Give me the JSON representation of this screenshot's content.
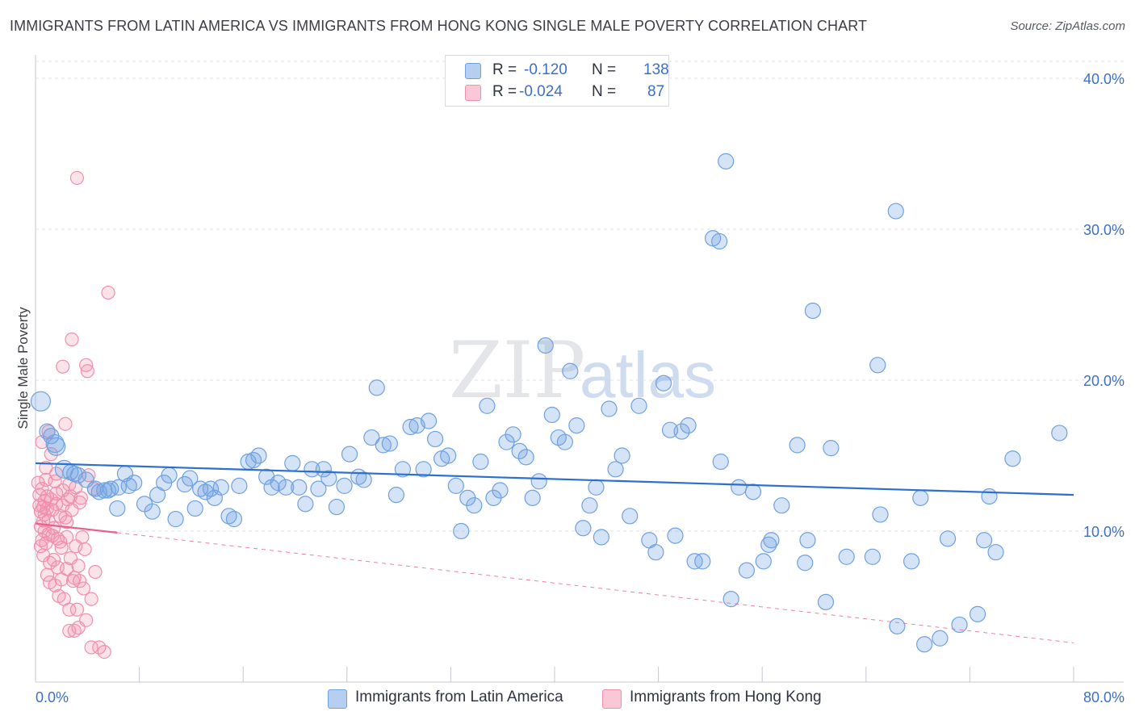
{
  "title": "IMMIGRANTS FROM LATIN AMERICA VS IMMIGRANTS FROM HONG KONG SINGLE MALE POVERTY CORRELATION CHART",
  "source": "Source: ZipAtlas.com",
  "watermark": {
    "zip": "ZIP",
    "atlas": "atlas"
  },
  "legend": {
    "rows": [
      {
        "r_label": "R =",
        "r_value": "-0.120",
        "n_label": "N =",
        "n_value": "138"
      },
      {
        "r_label": "R =",
        "r_value": "-0.024",
        "n_label": "N =",
        "n_value": "87"
      }
    ]
  },
  "chart_data": {
    "type": "scatter",
    "title": "IMMIGRANTS FROM LATIN AMERICA VS IMMIGRANTS FROM HONG KONG SINGLE MALE POVERTY CORRELATION CHART",
    "xlabel": "",
    "ylabel": "Single Male Poverty",
    "xlim": [
      0,
      80
    ],
    "ylim": [
      0,
      40
    ],
    "x_tick_labels": [
      "0.0%",
      "80.0%"
    ],
    "y_ticks": [
      10,
      20,
      30,
      40
    ],
    "y_tick_labels": [
      "10.0%",
      "20.0%",
      "30.0%",
      "40.0%"
    ],
    "grid": true,
    "legend_position": "top-center",
    "colors": {
      "latin_america": "#6fa1e0",
      "hong_kong": "#f08fac",
      "latin_line": "#2c6fce",
      "hk_line": "#e8628e"
    },
    "series": [
      {
        "name": "Immigrants from Latin America",
        "r": -0.12,
        "n": 138,
        "trend": {
          "x0": 0,
          "y0": 14.5,
          "x1": 80,
          "y1": 12.4
        },
        "points": [
          [
            0.4,
            18.6
          ],
          [
            0.9,
            16.6
          ],
          [
            1.2,
            16.3
          ],
          [
            1.5,
            15.8
          ],
          [
            1.6,
            15.6
          ],
          [
            2.2,
            14.1
          ],
          [
            2.7,
            13.9
          ],
          [
            3.0,
            13.8
          ],
          [
            3.3,
            13.7
          ],
          [
            3.9,
            13.4
          ],
          [
            4.6,
            12.8
          ],
          [
            4.9,
            12.6
          ],
          [
            5.3,
            12.7
          ],
          [
            5.6,
            12.7
          ],
          [
            5.8,
            12.8
          ],
          [
            6.4,
            12.9
          ],
          [
            6.3,
            11.5
          ],
          [
            6.9,
            13.8
          ],
          [
            7.2,
            13.0
          ],
          [
            7.6,
            13.2
          ],
          [
            8.4,
            11.8
          ],
          [
            9.0,
            11.3
          ],
          [
            9.4,
            12.4
          ],
          [
            9.9,
            13.2
          ],
          [
            10.3,
            13.7
          ],
          [
            10.8,
            10.8
          ],
          [
            11.5,
            13.1
          ],
          [
            11.9,
            13.5
          ],
          [
            12.3,
            11.5
          ],
          [
            12.7,
            12.8
          ],
          [
            13.1,
            12.6
          ],
          [
            13.5,
            12.8
          ],
          [
            13.8,
            12.2
          ],
          [
            14.3,
            12.9
          ],
          [
            14.9,
            11.0
          ],
          [
            15.3,
            10.8
          ],
          [
            15.7,
            13.0
          ],
          [
            16.4,
            14.6
          ],
          [
            16.8,
            14.7
          ],
          [
            17.2,
            15.0
          ],
          [
            17.8,
            13.6
          ],
          [
            18.2,
            12.9
          ],
          [
            18.7,
            13.2
          ],
          [
            19.3,
            12.9
          ],
          [
            19.8,
            14.5
          ],
          [
            20.3,
            12.9
          ],
          [
            20.8,
            11.8
          ],
          [
            21.3,
            14.1
          ],
          [
            21.8,
            12.8
          ],
          [
            22.2,
            14.1
          ],
          [
            22.6,
            13.5
          ],
          [
            23.2,
            11.6
          ],
          [
            23.8,
            13.0
          ],
          [
            24.2,
            15.1
          ],
          [
            24.9,
            13.6
          ],
          [
            25.3,
            13.4
          ],
          [
            25.9,
            16.2
          ],
          [
            26.3,
            19.5
          ],
          [
            26.8,
            15.7
          ],
          [
            27.3,
            15.8
          ],
          [
            27.8,
            12.4
          ],
          [
            28.3,
            14.1
          ],
          [
            28.9,
            16.9
          ],
          [
            29.4,
            17.0
          ],
          [
            29.9,
            14.1
          ],
          [
            30.3,
            17.3
          ],
          [
            30.8,
            16.1
          ],
          [
            31.3,
            14.8
          ],
          [
            31.8,
            15.0
          ],
          [
            32.4,
            13.0
          ],
          [
            32.8,
            10.0
          ],
          [
            33.3,
            12.2
          ],
          [
            33.8,
            11.7
          ],
          [
            34.3,
            14.6
          ],
          [
            34.8,
            18.3
          ],
          [
            35.3,
            12.2
          ],
          [
            35.8,
            12.7
          ],
          [
            36.3,
            15.9
          ],
          [
            36.8,
            16.4
          ],
          [
            37.3,
            15.3
          ],
          [
            37.8,
            14.9
          ],
          [
            38.3,
            12.2
          ],
          [
            38.8,
            13.3
          ],
          [
            39.3,
            22.3
          ],
          [
            39.8,
            17.7
          ],
          [
            40.3,
            16.2
          ],
          [
            40.8,
            15.9
          ],
          [
            41.2,
            20.6
          ],
          [
            41.7,
            17.0
          ],
          [
            42.2,
            10.2
          ],
          [
            42.7,
            11.7
          ],
          [
            43.2,
            12.9
          ],
          [
            43.6,
            9.6
          ],
          [
            44.2,
            18.1
          ],
          [
            44.7,
            14.1
          ],
          [
            45.2,
            15.0
          ],
          [
            45.8,
            11.0
          ],
          [
            46.5,
            18.3
          ],
          [
            47.3,
            9.4
          ],
          [
            47.8,
            8.6
          ],
          [
            48.4,
            19.8
          ],
          [
            48.9,
            16.7
          ],
          [
            49.3,
            9.7
          ],
          [
            49.8,
            16.6
          ],
          [
            50.3,
            17.0
          ],
          [
            50.8,
            8.0
          ],
          [
            51.4,
            8.0
          ],
          [
            52.2,
            29.4
          ],
          [
            52.7,
            29.2
          ],
          [
            52.8,
            14.6
          ],
          [
            53.2,
            34.5
          ],
          [
            53.6,
            5.5
          ],
          [
            54.2,
            12.9
          ],
          [
            54.8,
            7.4
          ],
          [
            55.3,
            12.6
          ],
          [
            56.1,
            8.0
          ],
          [
            56.5,
            9.1
          ],
          [
            56.7,
            9.4
          ],
          [
            57.5,
            11.7
          ],
          [
            58.7,
            15.7
          ],
          [
            59.3,
            7.9
          ],
          [
            59.5,
            9.4
          ],
          [
            59.9,
            24.6
          ],
          [
            60.9,
            5.3
          ],
          [
            61.3,
            15.5
          ],
          [
            62.5,
            8.3
          ],
          [
            64.5,
            8.3
          ],
          [
            64.9,
            21.0
          ],
          [
            65.1,
            11.1
          ],
          [
            66.3,
            31.2
          ],
          [
            66.4,
            3.7
          ],
          [
            67.5,
            8.0
          ],
          [
            68.2,
            12.2
          ],
          [
            68.5,
            2.5
          ],
          [
            69.7,
            2.9
          ],
          [
            70.3,
            9.5
          ],
          [
            71.2,
            3.8
          ],
          [
            72.6,
            4.5
          ],
          [
            73.1,
            9.4
          ],
          [
            73.5,
            12.3
          ],
          [
            74.0,
            8.6
          ],
          [
            75.3,
            14.8
          ],
          [
            78.9,
            16.5
          ]
        ]
      },
      {
        "name": "Immigrants from Hong Kong",
        "r": -0.024,
        "n": 87,
        "trend": {
          "x0": 0,
          "y0": 10.5,
          "x1": 6.3,
          "y1": 9.9,
          "dashed_x1": 80,
          "dashed_y1": 2.6
        },
        "points": [
          [
            0.2,
            13.2
          ],
          [
            0.3,
            12.4
          ],
          [
            0.3,
            11.7
          ],
          [
            0.4,
            11.3
          ],
          [
            0.4,
            10.3
          ],
          [
            0.5,
            9.4
          ],
          [
            0.5,
            12.8
          ],
          [
            0.6,
            11.6
          ],
          [
            0.6,
            10.7
          ],
          [
            0.7,
            12.0
          ],
          [
            0.7,
            11.1
          ],
          [
            0.7,
            10.0
          ],
          [
            0.8,
            9.2
          ],
          [
            0.8,
            13.4
          ],
          [
            0.9,
            12.3
          ],
          [
            0.9,
            11.5
          ],
          [
            1.0,
            10.7
          ],
          [
            1.0,
            9.8
          ],
          [
            1.1,
            7.9
          ],
          [
            1.1,
            6.6
          ],
          [
            1.2,
            12.1
          ],
          [
            1.3,
            11.4
          ],
          [
            1.3,
            9.7
          ],
          [
            1.4,
            8.1
          ],
          [
            1.5,
            6.4
          ],
          [
            1.5,
            13.3
          ],
          [
            1.6,
            12.5
          ],
          [
            1.6,
            11.8
          ],
          [
            1.7,
            9.5
          ],
          [
            1.7,
            7.6
          ],
          [
            1.8,
            5.7
          ],
          [
            1.9,
            11.0
          ],
          [
            2.0,
            8.9
          ],
          [
            2.0,
            6.8
          ],
          [
            2.1,
            20.9
          ],
          [
            2.1,
            11.7
          ],
          [
            2.2,
            5.5
          ],
          [
            2.3,
            17.1
          ],
          [
            2.4,
            9.6
          ],
          [
            2.4,
            7.5
          ],
          [
            2.5,
            12.1
          ],
          [
            2.6,
            4.8
          ],
          [
            2.6,
            3.4
          ],
          [
            2.7,
            8.2
          ],
          [
            2.7,
            12.3
          ],
          [
            2.8,
            22.7
          ],
          [
            2.9,
            6.7
          ],
          [
            3.0,
            3.4
          ],
          [
            3.0,
            6.9
          ],
          [
            3.1,
            12.9
          ],
          [
            3.2,
            33.4
          ],
          [
            3.2,
            4.8
          ],
          [
            3.3,
            3.6
          ],
          [
            3.3,
            7.7
          ],
          [
            3.4,
            6.7
          ],
          [
            3.5,
            12.2
          ],
          [
            3.6,
            9.6
          ],
          [
            3.7,
            6.2
          ],
          [
            3.8,
            8.8
          ],
          [
            3.9,
            4.1
          ],
          [
            3.9,
            21.0
          ],
          [
            4.0,
            20.6
          ],
          [
            4.1,
            13.7
          ],
          [
            4.3,
            5.5
          ],
          [
            4.3,
            2.3
          ],
          [
            4.5,
            12.8
          ],
          [
            4.6,
            7.3
          ],
          [
            4.9,
            2.3
          ],
          [
            5.3,
            2.0
          ],
          [
            5.6,
            25.8
          ],
          [
            0.5,
            15.9
          ],
          [
            0.8,
            14.2
          ],
          [
            1.0,
            16.6
          ],
          [
            1.2,
            15.1
          ],
          [
            1.6,
            13.8
          ],
          [
            2.1,
            12.7
          ],
          [
            2.3,
            10.9
          ],
          [
            2.6,
            13.1
          ],
          [
            2.8,
            11.4
          ],
          [
            3.1,
            9.0
          ],
          [
            3.4,
            11.9
          ],
          [
            0.4,
            9.0
          ],
          [
            0.6,
            8.4
          ],
          [
            0.9,
            7.1
          ],
          [
            1.4,
            10.2
          ],
          [
            1.9,
            9.3
          ],
          [
            2.4,
            10.6
          ]
        ]
      }
    ]
  },
  "bottom_legend": [
    {
      "label": "Immigrants from Latin America"
    },
    {
      "label": "Immigrants from Hong Kong"
    }
  ]
}
